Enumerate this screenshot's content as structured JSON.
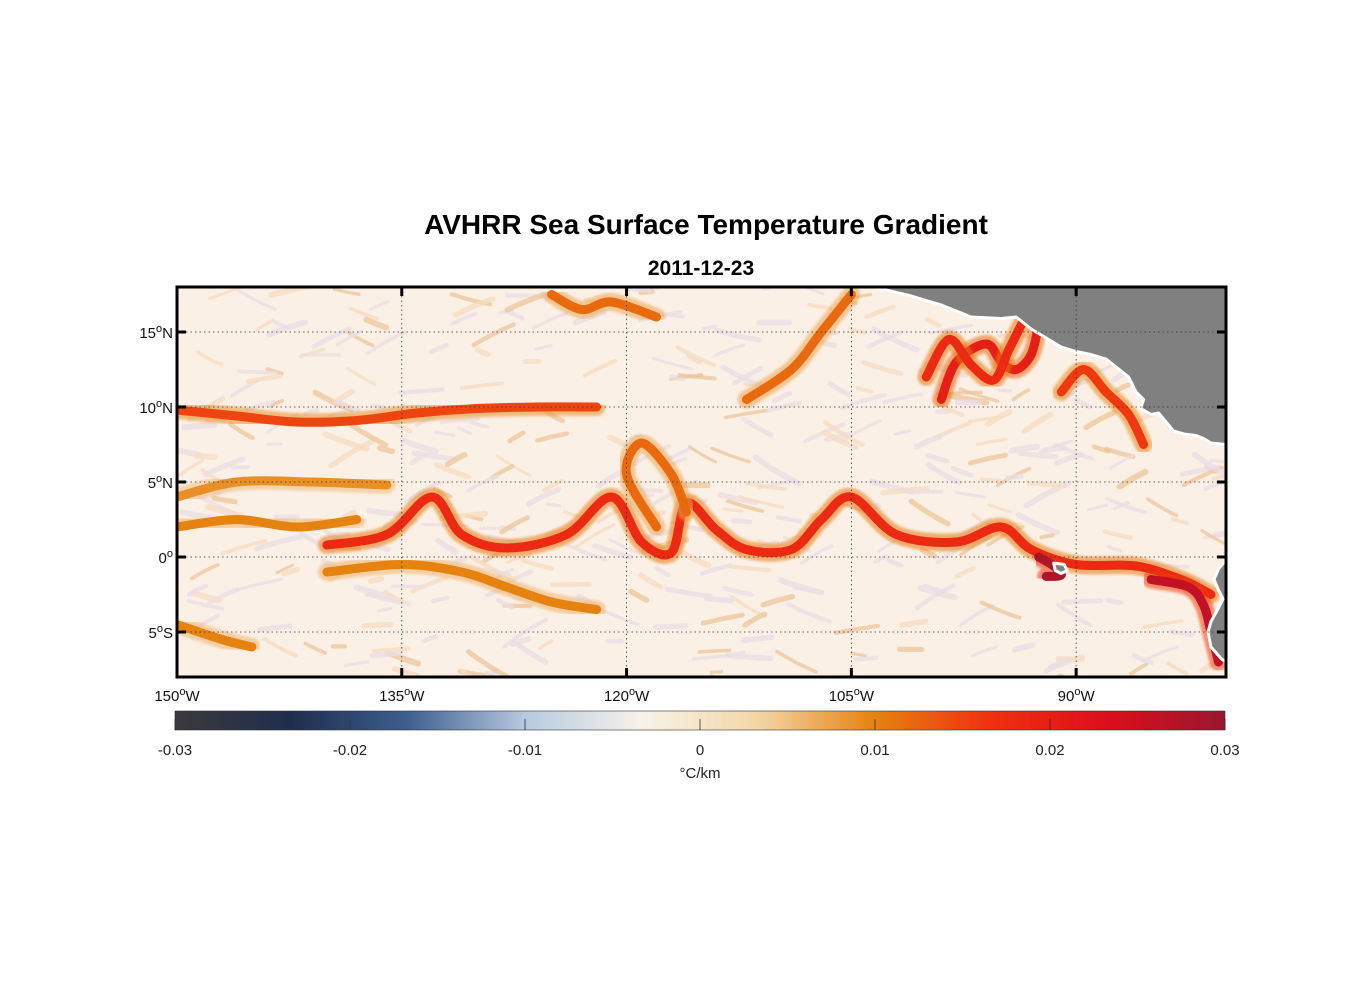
{
  "title": "AVHRR Sea Surface Temperature Gradient",
  "subtitle": "2011-12-23",
  "map": {
    "lon_range": [
      -150,
      -80
    ],
    "lat_range": [
      -8,
      18
    ],
    "grid": true,
    "land_color": "#808080",
    "lon_ticks": [
      {
        "value": -150,
        "deg": "150",
        "hemi": "W"
      },
      {
        "value": -135,
        "deg": "135",
        "hemi": "W"
      },
      {
        "value": -120,
        "deg": "120",
        "hemi": "W"
      },
      {
        "value": -105,
        "deg": "105",
        "hemi": "W"
      },
      {
        "value": -90,
        "deg": "90",
        "hemi": "W"
      }
    ],
    "lat_ticks": [
      {
        "value": 15,
        "deg": "15",
        "hemi": "N"
      },
      {
        "value": 10,
        "deg": "10",
        "hemi": "N"
      },
      {
        "value": 5,
        "deg": "5",
        "hemi": "N"
      },
      {
        "value": 0,
        "deg": "0",
        "hemi": ""
      },
      {
        "value": -5,
        "deg": "5",
        "hemi": "S"
      }
    ],
    "fronts": [
      {
        "name": "front-10n",
        "strength": 0.015,
        "points": [
          [
            -150,
            9.8
          ],
          [
            -146,
            9.4
          ],
          [
            -142,
            9.0
          ],
          [
            -138,
            9.1
          ],
          [
            -134,
            9.6
          ],
          [
            -130,
            9.9
          ],
          [
            -126,
            10.0
          ],
          [
            -122,
            10.0
          ]
        ]
      },
      {
        "name": "front-equatorial",
        "strength": 0.018,
        "points": [
          [
            -140,
            0.8
          ],
          [
            -136,
            1.5
          ],
          [
            -133,
            4.0
          ],
          [
            -131,
            1.5
          ],
          [
            -128,
            0.6
          ],
          [
            -124,
            1.5
          ],
          [
            -121,
            4.0
          ],
          [
            -119,
            1.0
          ],
          [
            -117,
            0.3
          ],
          [
            -116,
            3.6
          ],
          [
            -114,
            1.8
          ],
          [
            -112,
            0.5
          ],
          [
            -109,
            0.5
          ],
          [
            -107,
            2.5
          ],
          [
            -105,
            4.0
          ],
          [
            -102,
            1.5
          ],
          [
            -98,
            1.0
          ],
          [
            -95,
            2.0
          ],
          [
            -93,
            0.5
          ],
          [
            -90,
            -0.5
          ],
          [
            -86,
            -0.6
          ],
          [
            -83,
            -1.5
          ],
          [
            -81,
            -2.5
          ]
        ]
      },
      {
        "name": "front-tiw-loop",
        "strength": 0.012,
        "points": [
          [
            -118,
            2.0
          ],
          [
            -120,
            5.5
          ],
          [
            -119,
            7.6
          ],
          [
            -117,
            5.5
          ],
          [
            -116,
            3.0
          ]
        ]
      },
      {
        "name": "front-south",
        "strength": 0.01,
        "points": [
          [
            -140,
            -1.0
          ],
          [
            -135,
            -0.5
          ],
          [
            -131,
            -1.0
          ],
          [
            -128,
            -2.0
          ],
          [
            -125,
            -3.0
          ],
          [
            -122,
            -3.5
          ]
        ]
      },
      {
        "name": "front-west-3n",
        "strength": 0.01,
        "points": [
          [
            -150,
            2.0
          ],
          [
            -146,
            2.5
          ],
          [
            -142,
            2.0
          ],
          [
            -138,
            2.5
          ]
        ]
      },
      {
        "name": "front-west-5n",
        "strength": 0.009,
        "points": [
          [
            -150,
            4.0
          ],
          [
            -146,
            5.0
          ],
          [
            -141,
            5.0
          ],
          [
            -136,
            4.8
          ]
        ]
      },
      {
        "name": "front-coast-north",
        "strength": 0.02,
        "points": [
          [
            -99,
            10.5
          ],
          [
            -98,
            13.0
          ],
          [
            -96,
            14.2
          ],
          [
            -95,
            13.0
          ],
          [
            -94,
            12.5
          ],
          [
            -93,
            13.5
          ],
          [
            -92.5,
            15.5
          ]
        ]
      },
      {
        "name": "front-coast-loop",
        "strength": 0.018,
        "points": [
          [
            -100,
            12.0
          ],
          [
            -98.5,
            14.5
          ],
          [
            -97,
            12.8
          ],
          [
            -95.5,
            11.8
          ],
          [
            -94.5,
            13.8
          ],
          [
            -93.5,
            15.8
          ]
        ]
      },
      {
        "name": "front-gulf-papagayo",
        "strength": 0.016,
        "points": [
          [
            -91,
            11.0
          ],
          [
            -89.5,
            12.5
          ],
          [
            -88,
            11.0
          ],
          [
            -86.5,
            9.5
          ],
          [
            -85.5,
            7.5
          ]
        ]
      },
      {
        "name": "front-galapagos",
        "strength": 0.028,
        "points": [
          [
            -92.5,
            0.0
          ],
          [
            -91.5,
            -0.6
          ],
          [
            -91,
            -1.2
          ],
          [
            -92,
            -1.3
          ]
        ]
      },
      {
        "name": "front-peru-coast",
        "strength": 0.026,
        "points": [
          [
            -85,
            -1.5
          ],
          [
            -82.5,
            -2.0
          ],
          [
            -81.5,
            -3.2
          ],
          [
            -81,
            -5.0
          ],
          [
            -80.5,
            -7.0
          ]
        ]
      },
      {
        "name": "front-north-edge",
        "strength": 0.012,
        "points": [
          [
            -125,
            17.5
          ],
          [
            -123,
            16.5
          ],
          [
            -121,
            17.0
          ],
          [
            -118,
            16.0
          ]
        ]
      },
      {
        "name": "front-105w-north",
        "strength": 0.012,
        "points": [
          [
            -112,
            10.5
          ],
          [
            -109,
            12.5
          ],
          [
            -107,
            15.0
          ],
          [
            -105,
            17.5
          ]
        ]
      },
      {
        "name": "front-sw-corner",
        "strength": 0.01,
        "points": [
          [
            -150,
            -4.5
          ],
          [
            -147,
            -5.5
          ],
          [
            -145,
            -6.0
          ]
        ]
      }
    ],
    "land": [
      {
        "name": "mexico-central-america",
        "points": [
          [
            -103.5,
            18
          ],
          [
            -101,
            17.4
          ],
          [
            -99,
            16.8
          ],
          [
            -97,
            16.0
          ],
          [
            -95,
            15.9
          ],
          [
            -94,
            16.0
          ],
          [
            -93,
            15.2
          ],
          [
            -92,
            14.6
          ],
          [
            -91,
            14.0
          ],
          [
            -90,
            13.7
          ],
          [
            -89,
            13.5
          ],
          [
            -88,
            13.2
          ],
          [
            -87.5,
            12.8
          ],
          [
            -86.5,
            12.0
          ],
          [
            -86,
            11.0
          ],
          [
            -85.5,
            10.5
          ],
          [
            -85.7,
            9.9
          ],
          [
            -85,
            9.5
          ],
          [
            -84.5,
            9.6
          ],
          [
            -84,
            9.0
          ],
          [
            -83.5,
            8.4
          ],
          [
            -82.8,
            8.2
          ],
          [
            -82,
            8.1
          ],
          [
            -81.5,
            7.9
          ],
          [
            -81,
            7.6
          ],
          [
            -80,
            7.5
          ],
          [
            -80,
            18
          ]
        ]
      },
      {
        "name": "south-america",
        "points": [
          [
            -80,
            -7.0
          ],
          [
            -80.3,
            -6.8
          ],
          [
            -81,
            -6.0
          ],
          [
            -81.2,
            -5.0
          ],
          [
            -81,
            -4.3
          ],
          [
            -80.5,
            -3.4
          ],
          [
            -80.2,
            -2.8
          ],
          [
            -80.5,
            -2.2
          ],
          [
            -80.8,
            -1.5
          ],
          [
            -80.5,
            -0.8
          ],
          [
            -80,
            -0.2
          ],
          [
            -80,
            -7.0
          ]
        ]
      },
      {
        "name": "galapagos",
        "points": [
          [
            -91.5,
            -0.4
          ],
          [
            -90.8,
            -0.5
          ],
          [
            -90.6,
            -0.9
          ],
          [
            -91,
            -1.1
          ],
          [
            -91.4,
            -0.9
          ]
        ]
      }
    ]
  },
  "colorbar": {
    "label": "°C/km",
    "ticks": [
      "-0.03",
      "-0.02",
      "-0.01",
      "0",
      "0.01",
      "0.02",
      "0.03"
    ],
    "range": [
      -0.03,
      0.03
    ],
    "colors": [
      "#3a3a3c",
      "#1f2d4d",
      "#3f5f8f",
      "#b7c9df",
      "#f7f3ea",
      "#f3d6a6",
      "#e6820f",
      "#f03010",
      "#dc0e1c",
      "#9a1630"
    ]
  }
}
